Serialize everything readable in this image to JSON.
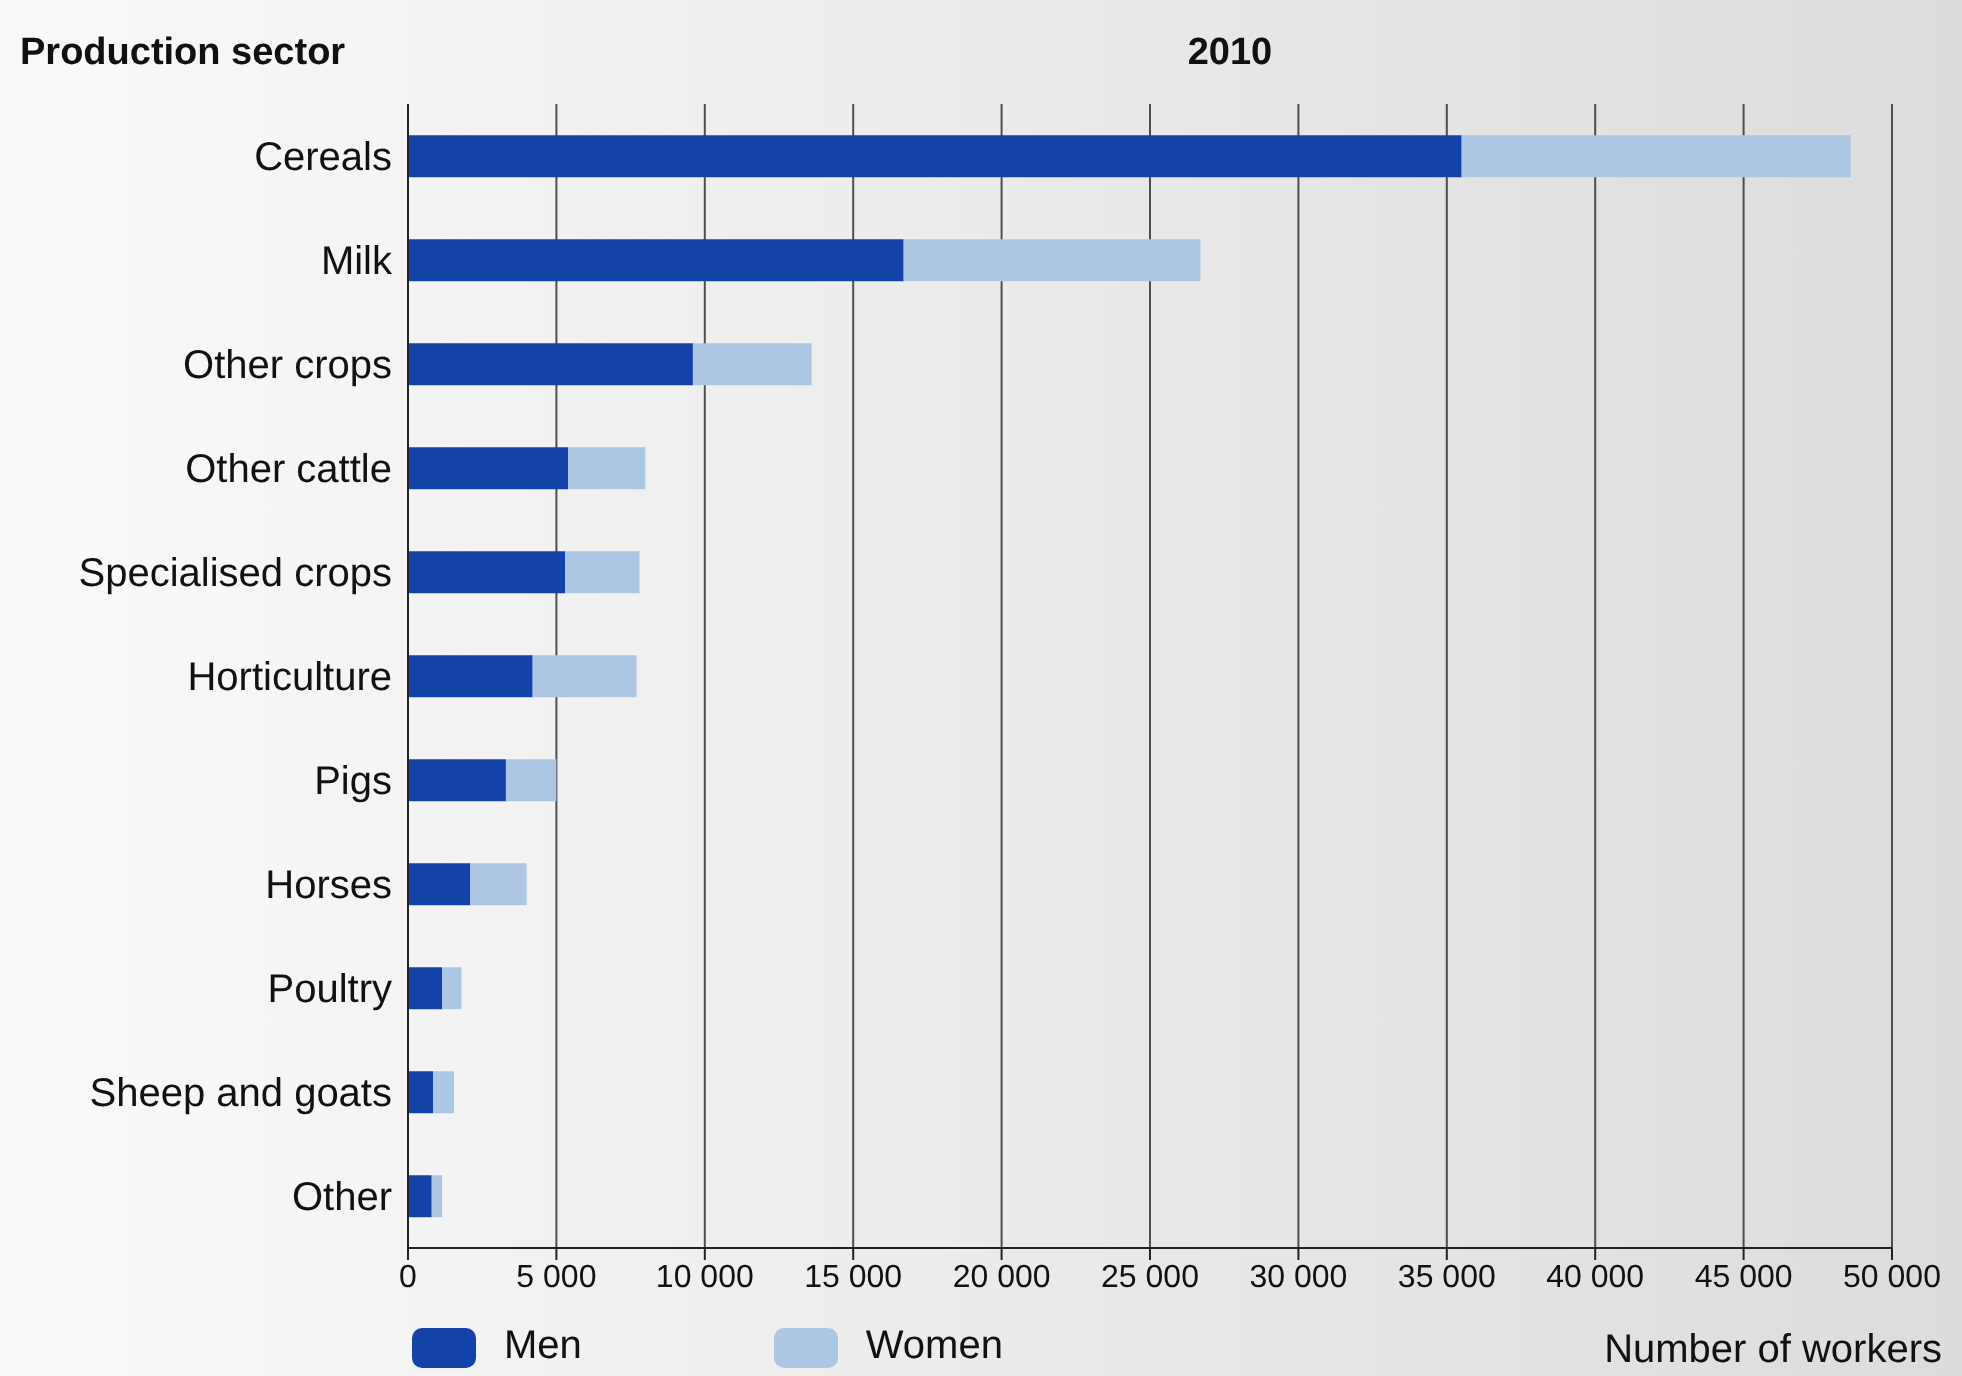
{
  "chart_data": {
    "type": "bar",
    "orientation": "horizontal",
    "stacked": true,
    "title": "2010",
    "ylabel": "Production sector",
    "xlabel": "Number of workers",
    "categories": [
      "Cereals",
      "Milk",
      "Other crops",
      "Other cattle",
      "Specialised crops",
      "Horticulture",
      "Pigs",
      "Horses",
      "Poultry",
      "Sheep and goats",
      "Other"
    ],
    "series": [
      {
        "name": "Men",
        "color": "#1343a8",
        "values": [
          35500,
          16700,
          9600,
          5400,
          5300,
          4200,
          3300,
          2100,
          1150,
          850,
          800
        ]
      },
      {
        "name": "Women",
        "color": "#adc6e4",
        "values": [
          13100,
          10000,
          4000,
          2600,
          2500,
          3500,
          1700,
          1900,
          650,
          700,
          350
        ]
      }
    ],
    "xlim": [
      0,
      50000
    ],
    "xticks": [
      {
        "value": 0,
        "label": "0"
      },
      {
        "value": 5000,
        "label": "5 000"
      },
      {
        "value": 10000,
        "label": "10 000"
      },
      {
        "value": 15000,
        "label": "15 000"
      },
      {
        "value": 20000,
        "label": "20 000"
      },
      {
        "value": 25000,
        "label": "25 000"
      },
      {
        "value": 30000,
        "label": "30 000"
      },
      {
        "value": 35000,
        "label": "35 000"
      },
      {
        "value": 40000,
        "label": "40 000"
      },
      {
        "value": 45000,
        "label": "45 000"
      },
      {
        "value": 50000,
        "label": "50 000"
      }
    ],
    "grid": "x",
    "legend": "bottom left"
  }
}
